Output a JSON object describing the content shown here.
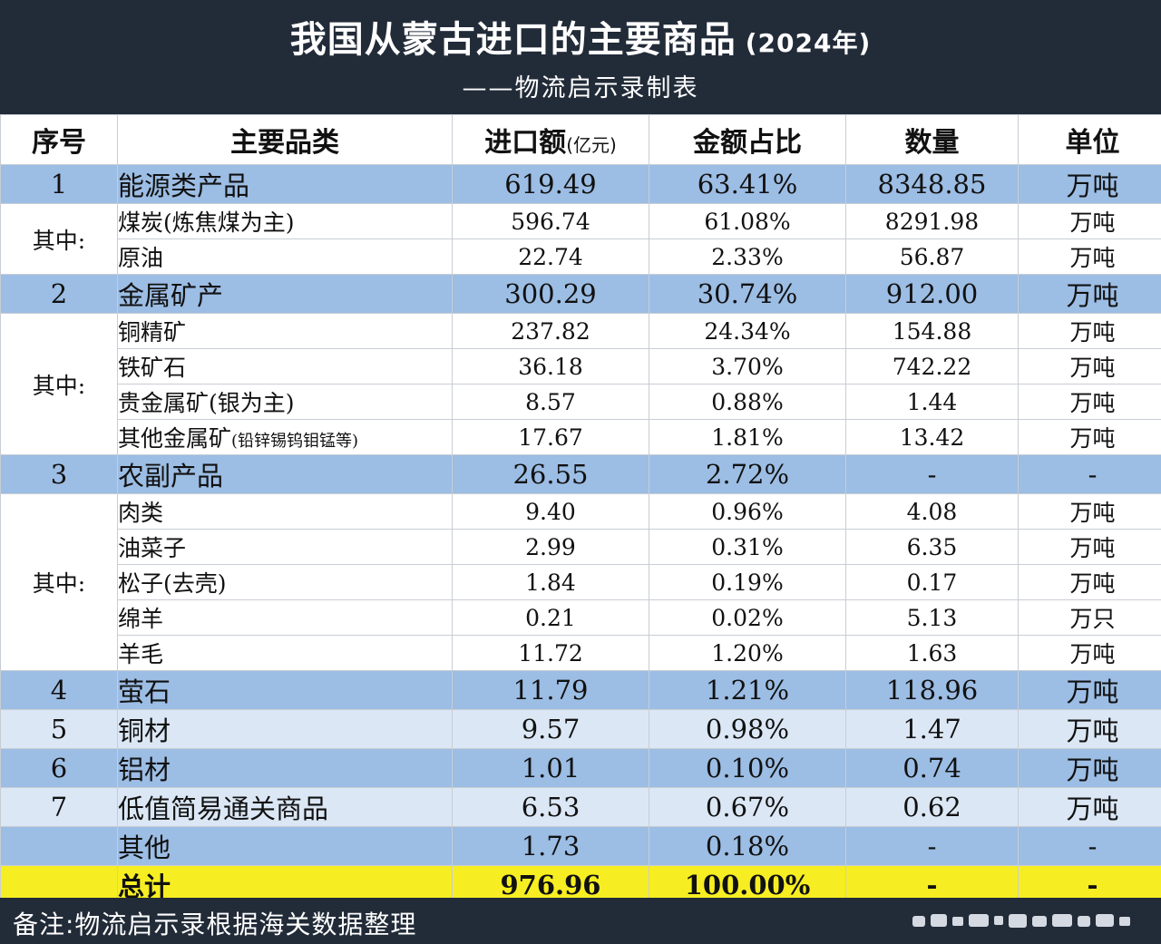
{
  "title": "我国从蒙古进口的主要商品",
  "title_year": "(2024年)",
  "subtitle": "——物流启示录制表",
  "headers": {
    "index": "序号",
    "category": "主要品类",
    "amount": "进口额",
    "amount_unit": "(亿元)",
    "share": "金额占比",
    "quantity": "数量",
    "unit": "单位"
  },
  "groups": [
    {
      "index": "1",
      "name": "能源类产品",
      "amount": "619.49",
      "share": "63.41%",
      "quantity": "8348.85",
      "unit": "万吨",
      "sub_label": "其中:",
      "items": [
        {
          "name": "煤炭(炼焦煤为主)",
          "note": "",
          "amount": "596.74",
          "share": "61.08%",
          "quantity": "8291.98",
          "unit": "万吨"
        },
        {
          "name": "原油",
          "note": "",
          "amount": "22.74",
          "share": "2.33%",
          "quantity": "56.87",
          "unit": "万吨"
        }
      ]
    },
    {
      "index": "2",
      "name": "金属矿产",
      "amount": "300.29",
      "share": "30.74%",
      "quantity": "912.00",
      "unit": "万吨",
      "sub_label": "其中:",
      "items": [
        {
          "name": "铜精矿",
          "note": "",
          "amount": "237.82",
          "share": "24.34%",
          "quantity": "154.88",
          "unit": "万吨"
        },
        {
          "name": "铁矿石",
          "note": "",
          "amount": "36.18",
          "share": "3.70%",
          "quantity": "742.22",
          "unit": "万吨"
        },
        {
          "name": "贵金属矿(银为主)",
          "note": "",
          "amount": "8.57",
          "share": "0.88%",
          "quantity": "1.44",
          "unit": "万吨"
        },
        {
          "name": "其他金属矿",
          "note": "(铅锌锡钨钼锰等)",
          "amount": "17.67",
          "share": "1.81%",
          "quantity": "13.42",
          "unit": "万吨"
        }
      ]
    },
    {
      "index": "3",
      "name": "农副产品",
      "amount": "26.55",
      "share": "2.72%",
      "quantity": "-",
      "unit": "-",
      "sub_label": "其中:",
      "items": [
        {
          "name": "肉类",
          "note": "",
          "amount": "9.40",
          "share": "0.96%",
          "quantity": "4.08",
          "unit": "万吨"
        },
        {
          "name": "油菜子",
          "note": "",
          "amount": "2.99",
          "share": "0.31%",
          "quantity": "6.35",
          "unit": "万吨"
        },
        {
          "name": "松子(去壳)",
          "note": "",
          "amount": "1.84",
          "share": "0.19%",
          "quantity": "0.17",
          "unit": "万吨"
        },
        {
          "name": "绵羊",
          "note": "",
          "amount": "0.21",
          "share": "0.02%",
          "quantity": "5.13",
          "unit": "万只"
        },
        {
          "name": "羊毛",
          "note": "",
          "amount": "11.72",
          "share": "1.20%",
          "quantity": "1.63",
          "unit": "万吨"
        }
      ]
    }
  ],
  "singles": [
    {
      "index": "4",
      "name": "萤石",
      "amount": "11.79",
      "share": "1.21%",
      "quantity": "118.96",
      "unit": "万吨"
    },
    {
      "index": "5",
      "name": "铜材",
      "amount": "9.57",
      "share": "0.98%",
      "quantity": "1.47",
      "unit": "万吨"
    },
    {
      "index": "6",
      "name": "铝材",
      "amount": "1.01",
      "share": "0.10%",
      "quantity": "0.74",
      "unit": "万吨"
    },
    {
      "index": "7",
      "name": "低值简易通关商品",
      "amount": "6.53",
      "share": "0.67%",
      "quantity": "0.62",
      "unit": "万吨"
    }
  ],
  "other": {
    "name": "其他",
    "amount": "1.73",
    "share": "0.18%",
    "quantity": "-",
    "unit": "-"
  },
  "total": {
    "name": "总计",
    "amount": "976.96",
    "share": "100.00%",
    "quantity": "-",
    "unit": "-"
  },
  "footer_note": "备注:物流启示录根据海关数据整理",
  "colors": {
    "header_bg": "#222b38",
    "main_row": "#9cbde4",
    "alt_row": "#dbe7f5",
    "total_row": "#f6ee22"
  }
}
